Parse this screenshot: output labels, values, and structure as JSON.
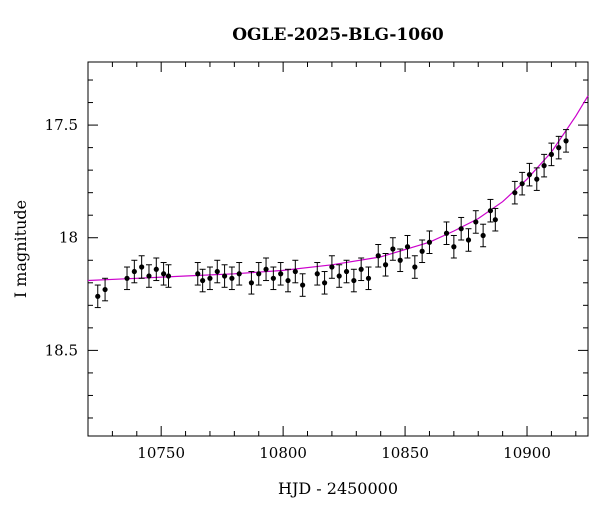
{
  "chart_data": {
    "type": "scatter",
    "title": "OGLE-2025-BLG-1060",
    "xlabel": "HJD - 2450000",
    "ylabel": "I magnitude",
    "xlim": [
      10720,
      10925
    ],
    "ylim": [
      18.88,
      17.22
    ],
    "y_inverted": true,
    "x_ticks": [
      10750,
      10800,
      10850,
      10900
    ],
    "x_tick_labels": [
      "10750",
      "10800",
      "10850",
      "10900"
    ],
    "y_ticks": [
      17.5,
      18,
      18.5
    ],
    "y_tick_labels": [
      "17.5",
      "18",
      "18.5"
    ],
    "grid": false,
    "legend": "none",
    "colors": {
      "points": "#000000",
      "model": "#cc00cc",
      "axes": "#000000"
    },
    "series": [
      {
        "kind": "observations",
        "x": [
          10724,
          10727,
          10736,
          10739,
          10742,
          10745,
          10748,
          10751,
          10753,
          10765,
          10767,
          10770,
          10773,
          10776,
          10779,
          10782,
          10787,
          10790,
          10793,
          10796,
          10799,
          10802,
          10805,
          10808,
          10814,
          10817,
          10820,
          10823,
          10826,
          10829,
          10832,
          10835,
          10839,
          10842,
          10845,
          10848,
          10851,
          10854,
          10857,
          10860,
          10867,
          10870,
          10873,
          10876,
          10879,
          10882,
          10885,
          10887,
          10895,
          10898,
          10901,
          10904,
          10907,
          10910,
          10913,
          10916
        ],
        "y": [
          18.26,
          18.23,
          18.18,
          18.15,
          18.13,
          18.17,
          18.14,
          18.16,
          18.17,
          18.16,
          18.19,
          18.18,
          18.15,
          18.17,
          18.18,
          18.16,
          18.2,
          18.16,
          18.14,
          18.18,
          18.16,
          18.19,
          18.15,
          18.21,
          18.16,
          18.2,
          18.13,
          18.17,
          18.15,
          18.19,
          18.14,
          18.18,
          18.08,
          18.12,
          18.05,
          18.1,
          18.04,
          18.13,
          18.06,
          18.02,
          17.98,
          18.04,
          17.96,
          18.01,
          17.93,
          17.99,
          17.88,
          17.92,
          17.8,
          17.76,
          17.72,
          17.74,
          17.68,
          17.63,
          17.6,
          17.57
        ],
        "err": 0.05
      },
      {
        "kind": "model",
        "x": [
          10720,
          10740,
          10760,
          10780,
          10800,
          10820,
          10840,
          10860,
          10870,
          10880,
          10890,
          10900,
          10910,
          10920,
          10925
        ],
        "y": [
          18.19,
          18.18,
          18.17,
          18.16,
          18.145,
          18.12,
          18.085,
          18.02,
          17.97,
          17.915,
          17.84,
          17.74,
          17.62,
          17.46,
          17.37
        ]
      }
    ]
  }
}
